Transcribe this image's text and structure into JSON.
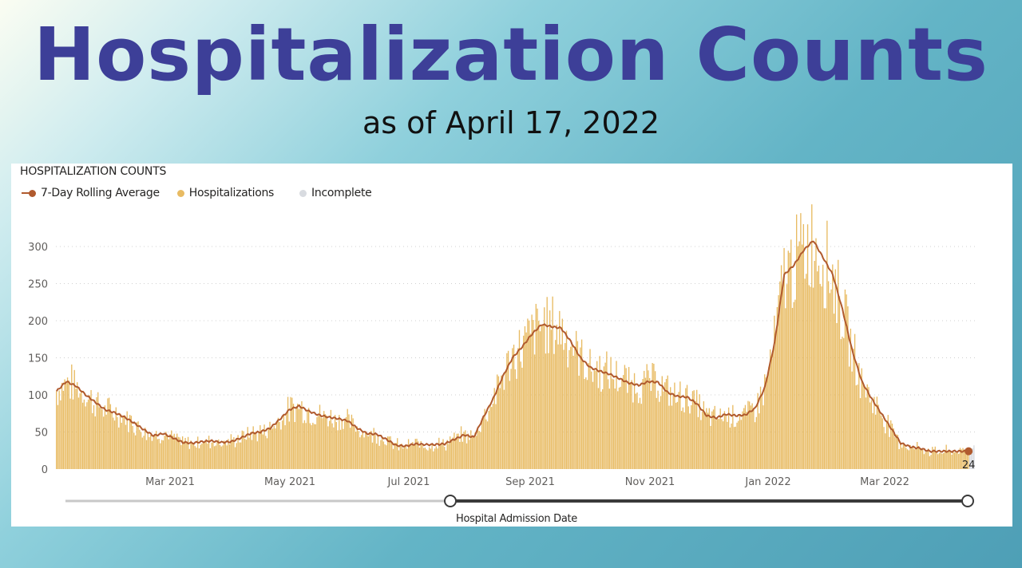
{
  "header": {
    "title": "Hospitalization Counts",
    "subtitle": "as of April 17, 2022"
  },
  "colors": {
    "title": "#3d3f98",
    "rolling_average": "#b05a2e",
    "hospitalizations": "#e8bb63",
    "incomplete": "#d8dbe0",
    "gridline": "#d0d0d0",
    "slider_active": "#3a3a3a",
    "slider_inactive": "#c8c8c8"
  },
  "chart": {
    "title": "HOSPITALIZATION COUNTS",
    "legend": [
      {
        "label": "7-Day Rolling Average",
        "marker": "line-dot",
        "color": "#b05a2e"
      },
      {
        "label": "Hospitalizations",
        "marker": "dot",
        "color": "#e8bb63"
      },
      {
        "label": "Incomplete",
        "marker": "dot",
        "color": "#d8dbe0"
      }
    ],
    "y_ticks": [
      "0",
      "50",
      "100",
      "150",
      "200",
      "250",
      "300"
    ],
    "x_ticks": [
      "Mar 2021",
      "May 2021",
      "Jul 2021",
      "Sep 2021",
      "Nov 2021",
      "Jan 2022",
      "Mar 2022"
    ],
    "last_value_label": "24"
  },
  "slider": {
    "label": "Hospital Admission Date"
  },
  "chart_data": {
    "type": "bar",
    "title": "HOSPITALIZATION COUNTS",
    "xlabel": "Hospital Admission Date",
    "ylabel": "",
    "ylim": [
      0,
      330
    ],
    "grid": true,
    "legend_position": "top-left",
    "x_tick_labels": [
      "Mar 2021",
      "May 2021",
      "Jul 2021",
      "Sep 2021",
      "Nov 2021",
      "Jan 2022",
      "Mar 2022"
    ],
    "y_tick_labels": [
      0,
      50,
      100,
      150,
      200,
      250,
      300
    ],
    "x_range": [
      "2021-01-02",
      "2022-04-17"
    ],
    "series": [
      {
        "name": "7-Day Rolling Average",
        "type": "line",
        "note": "weekly samples, starting 2021-01-02",
        "values": [
          105,
          118,
          112,
          100,
          90,
          80,
          76,
          70,
          62,
          53,
          45,
          48,
          42,
          36,
          35,
          37,
          38,
          36,
          37,
          42,
          48,
          50,
          55,
          67,
          80,
          85,
          78,
          73,
          70,
          68,
          65,
          55,
          48,
          47,
          40,
          32,
          31,
          34,
          33,
          33,
          34,
          40,
          46,
          43,
          70,
          95,
          125,
          150,
          165,
          182,
          195,
          192,
          190,
          172,
          150,
          137,
          132,
          128,
          122,
          116,
          113,
          118,
          117,
          103,
          98,
          97,
          88,
          72,
          69,
          74,
          72,
          73,
          82,
          110,
          170,
          262,
          275,
          295,
          308,
          285,
          262,
          215,
          160,
          118,
          95,
          75,
          55,
          35,
          30,
          28,
          24,
          24,
          24,
          24,
          24
        ]
      },
      {
        "name": "Hospitalizations",
        "type": "bar",
        "note": "daily counts fluctuate around the rolling average; peak ~340 in mid-Jan 2022"
      },
      {
        "name": "Incomplete",
        "type": "bar",
        "note": "last few days (mid-April 2022), approx 15-30"
      }
    ],
    "annotations": [
      {
        "x": "2022-04-17",
        "label": "24"
      }
    ]
  }
}
